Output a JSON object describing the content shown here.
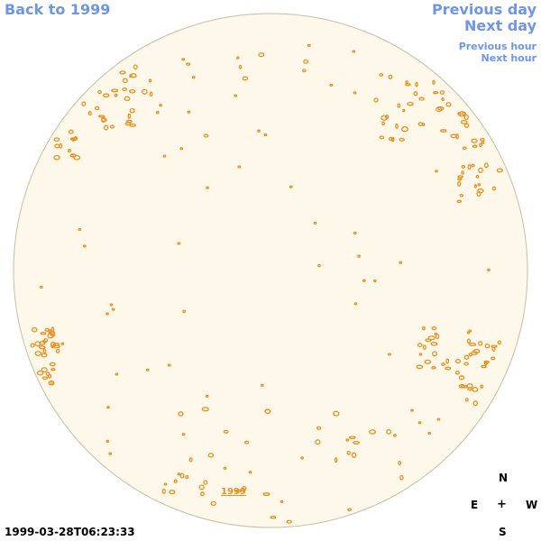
{
  "nav": {
    "back": "Back to 1999",
    "previous_day": "Previous day",
    "next_day": "Next day",
    "previous_hour": "Previous hour",
    "next_hour": "Next hour"
  },
  "disk": {
    "year_label": "1999"
  },
  "compass": {
    "north": "N",
    "east": "E",
    "center": "+",
    "west": "W",
    "south": "S"
  },
  "timestamp": "1999-03-28T06:23:33",
  "colors": {
    "link": "#6f95e6",
    "disk_fill": "#fdf8ea",
    "disk_border": "#c8bca6",
    "contour": "#e89020"
  }
}
